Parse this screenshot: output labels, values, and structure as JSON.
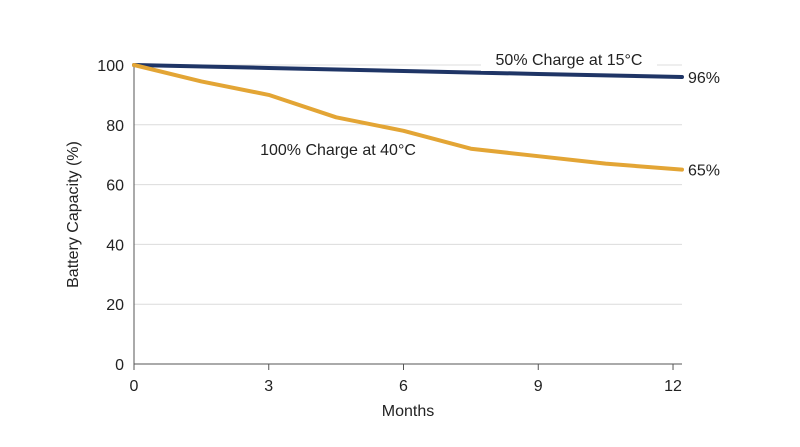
{
  "chart_data": {
    "type": "line",
    "title": "",
    "xlabel": "Months",
    "ylabel": "Battery Capacity (%)",
    "xlim": [
      0,
      12.2
    ],
    "ylim": [
      0,
      100
    ],
    "x_ticks": [
      0,
      3,
      6,
      9,
      12
    ],
    "y_ticks": [
      0,
      20,
      40,
      60,
      80,
      100
    ],
    "grid": "horizontal",
    "legend": "none",
    "series": [
      {
        "name": "50% Charge at 15°C",
        "color": "#1f3566",
        "end_label": "96%",
        "x": [
          0,
          3,
          6,
          9,
          12.2
        ],
        "values": [
          100,
          99,
          98,
          97,
          96
        ]
      },
      {
        "name": "100% Charge at 40°C",
        "color": "#e3a535",
        "end_label": "65%",
        "x": [
          0,
          1.5,
          3,
          4.5,
          6,
          7.5,
          9,
          10.5,
          12.2
        ],
        "values": [
          100,
          94.5,
          90,
          82.5,
          78,
          72,
          69.5,
          67,
          65
        ]
      }
    ]
  }
}
